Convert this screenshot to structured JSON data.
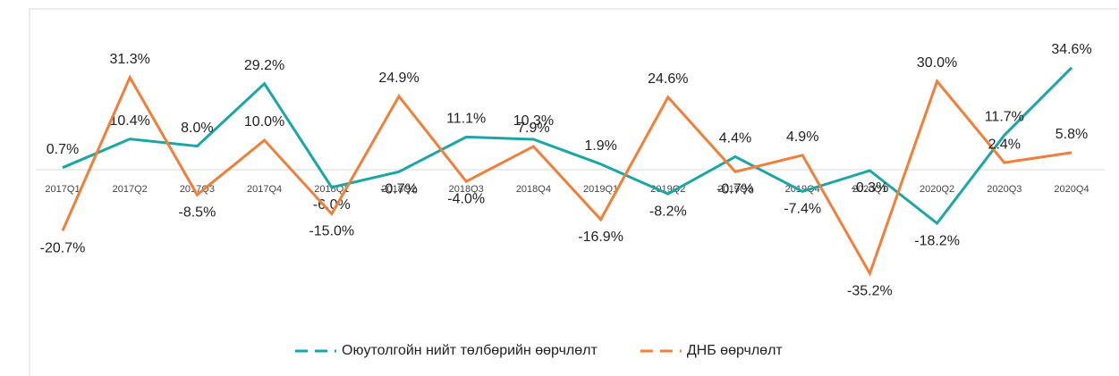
{
  "chart_data": {
    "type": "line",
    "categories": [
      "2017Q1",
      "2017Q2",
      "2017Q3",
      "2017Q4",
      "2018Q1",
      "2018Q2",
      "2018Q3",
      "2018Q4",
      "2019Q1",
      "2019Q2",
      "2019Q3",
      "2019Q4",
      "2020Q1",
      "2020Q2",
      "2020Q3",
      "2020Q4"
    ],
    "ylim": [
      -40,
      40
    ],
    "legend": "bottom",
    "series": [
      {
        "name": "Оюутолгойн нийт төлбөрийн өөрчлөлт",
        "color": "#1aa6a6",
        "values": [
          0.7,
          10.4,
          8.0,
          29.2,
          -6.0,
          -0.7,
          11.1,
          10.3,
          1.9,
          -8.2,
          4.4,
          -7.4,
          -0.3,
          -18.2,
          11.7,
          34.6
        ],
        "value_labels": [
          "0.7%",
          "10.4%",
          "8.0%",
          "29.2%",
          "-6.0%",
          "-0.7%",
          "11.1%",
          "10.3%",
          "1.9%",
          "-8.2%",
          "4.4%",
          "-7.4%",
          "-0.3%",
          "-18.2%",
          "11.7%",
          "34.6%"
        ]
      },
      {
        "name": "ДНБ өөрчлөлт",
        "color": "#f07f3a",
        "values": [
          -20.7,
          31.3,
          -8.5,
          10.0,
          -15.0,
          24.9,
          -4.0,
          7.9,
          -16.9,
          24.6,
          -0.7,
          4.9,
          -35.2,
          30.0,
          2.4,
          5.8
        ],
        "value_labels": [
          "-20.7%",
          "31.3%",
          "-8.5%",
          "10.0%",
          "-15.0%",
          "24.9%",
          "-4.0%",
          "7.9%",
          "-16.9%",
          "24.6%",
          "-0.7%",
          "4.9%",
          "-35.2%",
          "30.0%",
          "2.4%",
          "5.8%"
        ]
      }
    ]
  }
}
